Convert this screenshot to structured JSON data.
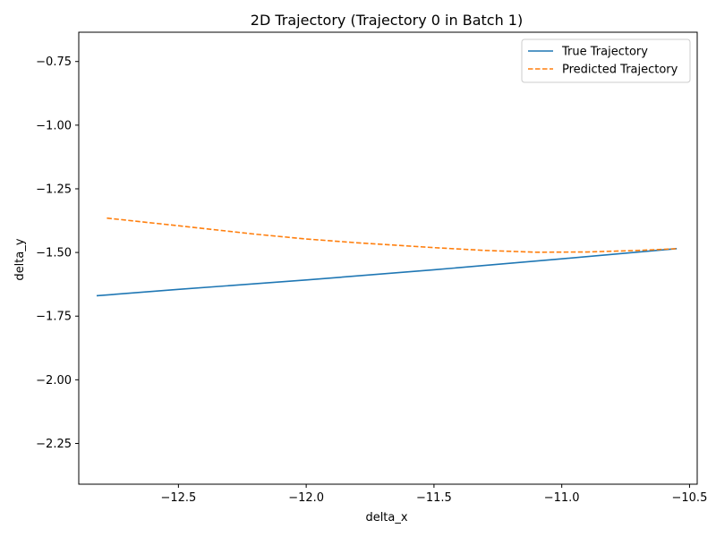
{
  "chart_data": {
    "type": "line",
    "title": "2D Trajectory (Trajectory 0 in Batch 1)",
    "xlabel": "delta_x",
    "ylabel": "delta_y",
    "xlim": [
      -12.89,
      -10.47
    ],
    "ylim": [
      -2.41,
      -0.635
    ],
    "xticks": [
      -12.5,
      -12.0,
      -11.5,
      -11.0,
      -10.5
    ],
    "xtick_labels": [
      "−12.5",
      "−12.0",
      "−11.5",
      "−11.0",
      "−10.5"
    ],
    "yticks": [
      -0.75,
      -1.0,
      -1.25,
      -1.5,
      -1.75,
      -2.0,
      -2.25
    ],
    "ytick_labels": [
      "−0.75",
      "−1.00",
      "−1.25",
      "−1.50",
      "−1.75",
      "−2.00",
      "−2.25"
    ],
    "legend_position": "top-right",
    "series": [
      {
        "name": "True Trajectory",
        "color": "#1f77b4",
        "style": "solid",
        "x": [
          -12.82,
          -12.5,
          -12.0,
          -11.5,
          -11.0,
          -10.55
        ],
        "y": [
          -1.67,
          -1.645,
          -1.608,
          -1.568,
          -1.525,
          -1.485
        ]
      },
      {
        "name": "Predicted Trajectory",
        "color": "#ff7f0e",
        "style": "dashed",
        "x": [
          -12.78,
          -12.5,
          -12.2,
          -12.0,
          -11.8,
          -11.5,
          -11.3,
          -11.1,
          -10.9,
          -10.7,
          -10.55
        ],
        "y": [
          -1.365,
          -1.395,
          -1.428,
          -1.447,
          -1.462,
          -1.481,
          -1.492,
          -1.499,
          -1.498,
          -1.492,
          -1.485
        ]
      }
    ]
  }
}
